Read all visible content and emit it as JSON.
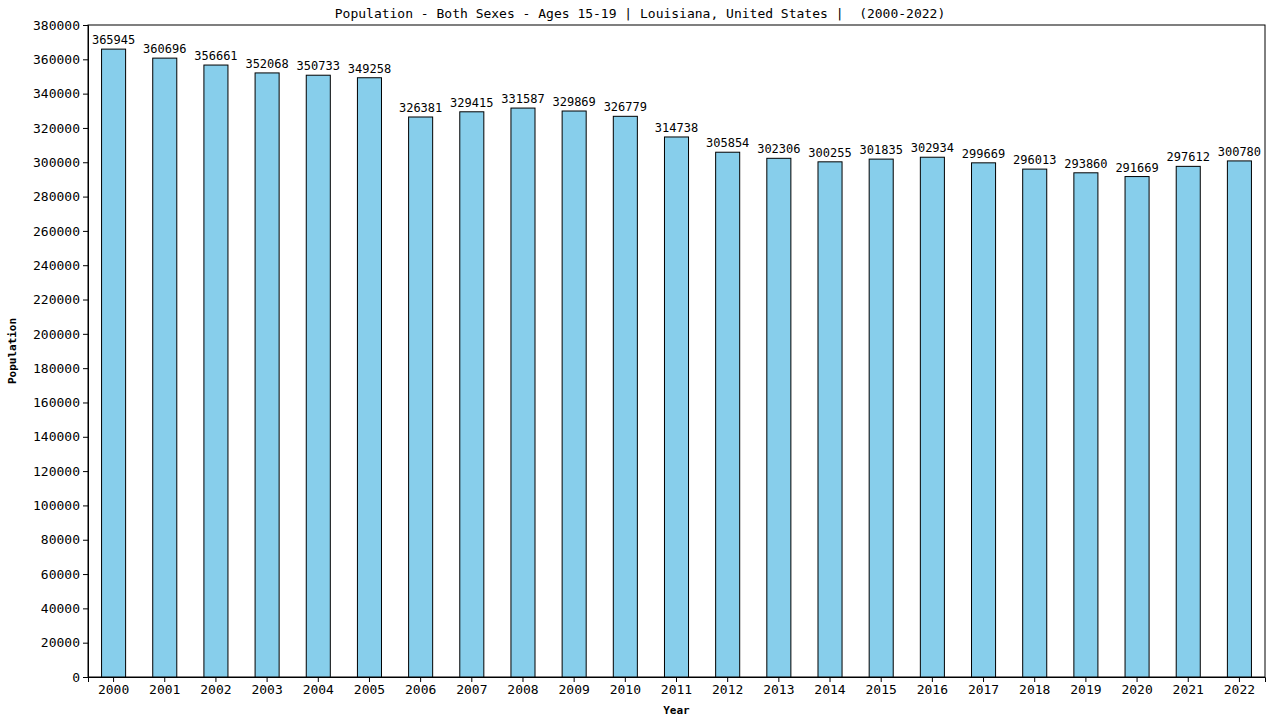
{
  "chart_data": {
    "type": "bar",
    "title": "Population - Both Sexes - Ages 15-19 | Louisiana, United States |  (2000-2022)",
    "x_label": "Year",
    "y_label": "Population",
    "categories": [
      "2000",
      "2001",
      "2002",
      "2003",
      "2004",
      "2005",
      "2006",
      "2007",
      "2008",
      "2009",
      "2010",
      "2011",
      "2012",
      "2013",
      "2014",
      "2015",
      "2016",
      "2017",
      "2018",
      "2019",
      "2020",
      "2021",
      "2022"
    ],
    "values": [
      365945,
      360696,
      356661,
      352068,
      350733,
      349258,
      326381,
      329415,
      331587,
      329869,
      326779,
      314738,
      305854,
      302306,
      300255,
      301835,
      302934,
      299669,
      296013,
      293860,
      291669,
      297612,
      300780
    ],
    "color": "#87ceeb",
    "ylim": [
      0,
      380000
    ],
    "yticks": [
      0,
      20000,
      40000,
      60000,
      80000,
      100000,
      120000,
      140000,
      160000,
      180000,
      200000,
      220000,
      240000,
      260000,
      280000,
      300000,
      320000,
      340000,
      360000,
      380000
    ],
    "grid": false,
    "data_labels": true
  }
}
